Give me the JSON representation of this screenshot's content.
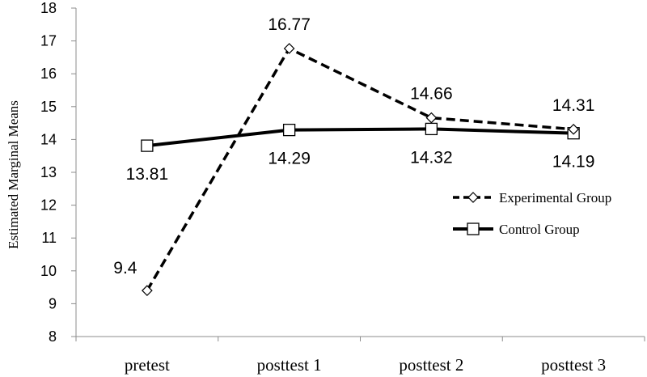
{
  "chart_data": {
    "type": "line",
    "categories": [
      "pretest",
      "posttest 1",
      "posttest 2",
      "posttest 3"
    ],
    "series": [
      {
        "name": "Experimental Group",
        "values": [
          9.4,
          16.77,
          14.66,
          14.31
        ],
        "labels": [
          "9.4",
          "16.77",
          "14.66",
          "14.31"
        ],
        "style": "dashed",
        "marker": "diamond",
        "color": "#000000"
      },
      {
        "name": "Control Group",
        "values": [
          13.81,
          14.29,
          14.32,
          14.19
        ],
        "labels": [
          "13.81",
          "14.29",
          "14.32",
          "14.19"
        ],
        "style": "solid",
        "marker": "square",
        "color": "#000000"
      }
    ],
    "ylabel": "Estimated Marginal Means",
    "xlabel": "",
    "ylim": [
      8,
      18
    ],
    "yticks": [
      "8",
      "9",
      "10",
      "11",
      "12",
      "13",
      "14",
      "15",
      "16",
      "17",
      "18"
    ],
    "grid": false,
    "legend": "right"
  }
}
